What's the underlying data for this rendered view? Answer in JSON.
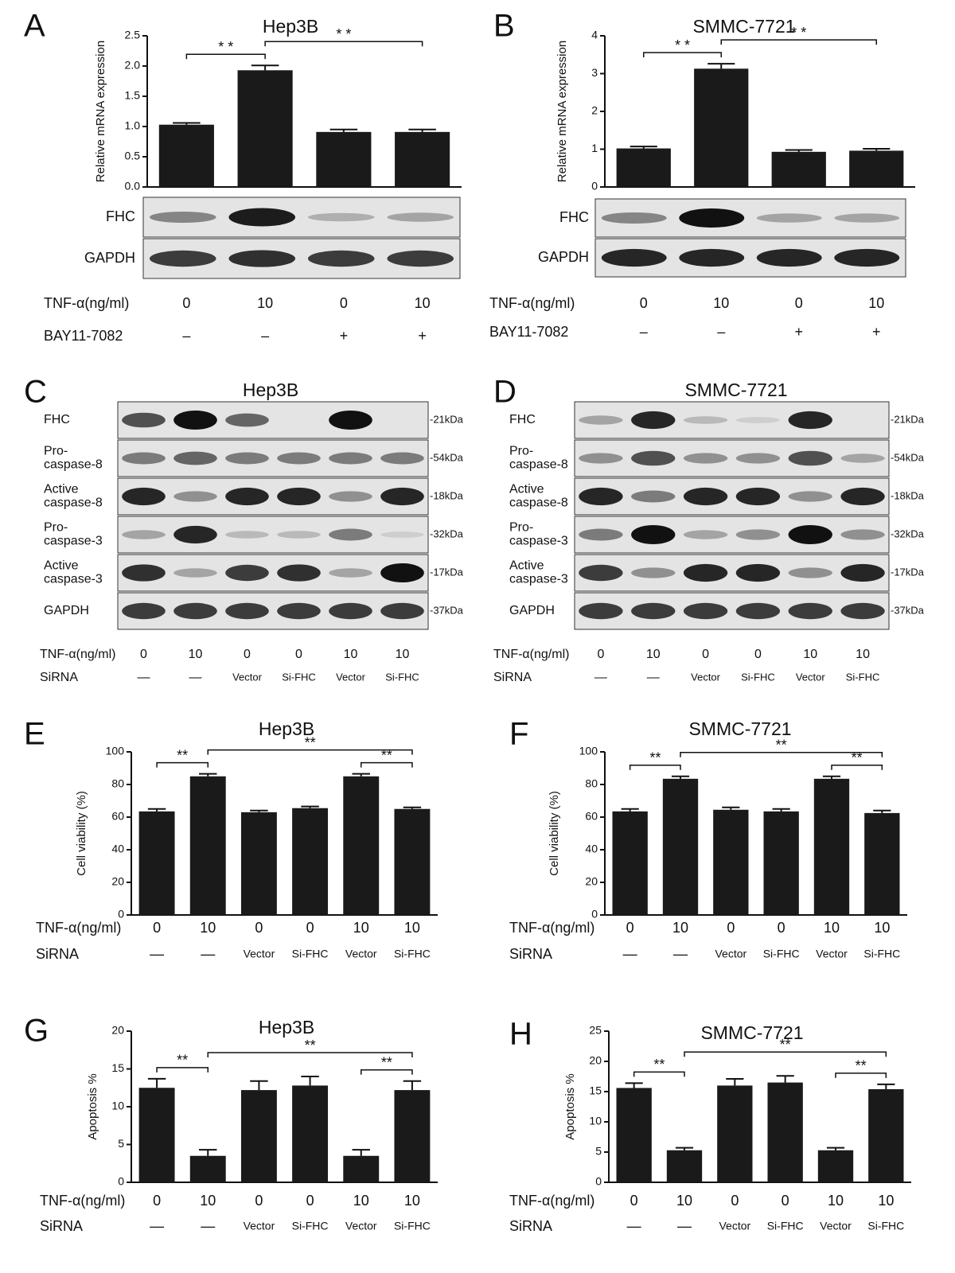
{
  "chart_data": [
    {
      "type": "bar",
      "panel": "A",
      "title": "Hep3B",
      "y_label": "Relative mRNA expression",
      "color": "#1a1a1a",
      "values": [
        1.03,
        1.93,
        0.91,
        0.91
      ],
      "errors": [
        0.03,
        0.08,
        0.04,
        0.04
      ],
      "ylim": [
        0,
        2.5
      ],
      "yticks": [
        {
          "value": 0,
          "label": "0.0"
        },
        0.5,
        {
          "value": 1,
          "label": "1.0"
        },
        1.5,
        {
          "value": 2,
          "label": "2.0"
        },
        2.5
      ],
      "annotations": [
        {
          "text": "* *",
          "from": 0,
          "to": 1
        },
        {
          "text": "* *",
          "from": 1,
          "to": 3
        }
      ],
      "rows": [
        {
          "label": "TNF-α(ng/ml)",
          "cells": [
            "0",
            "10",
            "0",
            "10"
          ]
        },
        {
          "label": "BAY11-7082",
          "cells": [
            "–",
            "–",
            "+",
            "+"
          ]
        }
      ]
    },
    {
      "type": "bar",
      "panel": "B",
      "title": "SMMC-7721",
      "y_label": "Relative mRNA expression",
      "color": "#1a1a1a",
      "values": [
        1.02,
        3.13,
        0.93,
        0.96
      ],
      "errors": [
        0.05,
        0.13,
        0.05,
        0.05
      ],
      "ylim": [
        0,
        4
      ],
      "yticks": [
        0,
        1,
        2,
        3,
        4
      ],
      "annotations": [
        {
          "text": "* *",
          "from": 0,
          "to": 1
        },
        {
          "text": "* *",
          "from": 1,
          "to": 3
        }
      ],
      "rows": [
        {
          "label": "TNF-α(ng/ml)",
          "cells": [
            "0",
            "10",
            "0",
            "10"
          ]
        },
        {
          "label": "BAY11-7082",
          "cells": [
            "–",
            "–",
            "+",
            "+"
          ]
        }
      ]
    },
    {
      "type": "bar",
      "panel": "E",
      "title": "Hep3B",
      "y_label": "Cell viability (%)",
      "color": "#1a1a1a",
      "values": [
        63.5,
        85,
        63,
        65.5,
        85,
        65
      ],
      "errors": [
        1.5,
        1.5,
        1,
        1,
        1.5,
        1
      ],
      "ylim": [
        0,
        100
      ],
      "yticks": [
        0,
        20,
        40,
        60,
        80,
        100
      ],
      "annotations": [
        {
          "text": "**",
          "from": 0,
          "to": 1
        },
        {
          "text": "**",
          "from": 1,
          "to": 5
        },
        {
          "text": "**",
          "from": 4,
          "to": 5
        }
      ],
      "rows": [
        {
          "label": "TNF-α(ng/ml)",
          "cells": [
            "0",
            "10",
            "0",
            "0",
            "10",
            "10"
          ]
        },
        {
          "label": "SiRNA",
          "cells": [
            "—",
            "—",
            "Vector",
            "Si-FHC",
            "Vector",
            "Si-FHC"
          ]
        }
      ]
    },
    {
      "type": "bar",
      "panel": "F",
      "title": "SMMC-7721",
      "y_label": "Cell viability (%)",
      "color": "#1a1a1a",
      "values": [
        63.5,
        83.5,
        64.5,
        63.5,
        83.5,
        62.5
      ],
      "errors": [
        1.5,
        1.5,
        1.5,
        1.5,
        1.5,
        1.5
      ],
      "ylim": [
        0,
        100
      ],
      "yticks": [
        0,
        20,
        40,
        60,
        80,
        100
      ],
      "annotations": [
        {
          "text": "**",
          "from": 0,
          "to": 1
        },
        {
          "text": "**",
          "from": 1,
          "to": 5
        },
        {
          "text": "**",
          "from": 4,
          "to": 5
        }
      ],
      "rows": [
        {
          "label": "TNF-α(ng/ml)",
          "cells": [
            "0",
            "10",
            "0",
            "0",
            "10",
            "10"
          ]
        },
        {
          "label": "SiRNA",
          "cells": [
            "—",
            "—",
            "Vector",
            "Si-FHC",
            "Vector",
            "Si-FHC"
          ]
        }
      ]
    },
    {
      "type": "bar",
      "panel": "G",
      "title": "Hep3B",
      "y_label": "Apoptosis %",
      "color": "#1a1a1a",
      "values": [
        12.5,
        3.5,
        12.2,
        12.8,
        3.5,
        12.2
      ],
      "errors": [
        1.2,
        0.8,
        1.2,
        1.2,
        0.8,
        1.2
      ],
      "ylim": [
        0,
        20
      ],
      "yticks": [
        0,
        5,
        10,
        15,
        20
      ],
      "annotations": [
        {
          "text": "**",
          "from": 0,
          "to": 1
        },
        {
          "text": "**",
          "from": 1,
          "to": 5
        },
        {
          "text": "**",
          "from": 4,
          "to": 5
        }
      ],
      "rows": [
        {
          "label": "TNF-α(ng/ml)",
          "cells": [
            "0",
            "10",
            "0",
            "0",
            "10",
            "10"
          ]
        },
        {
          "label": "SiRNA",
          "cells": [
            "—",
            "—",
            "Vector",
            "Si-FHC",
            "Vector",
            "Si-FHC"
          ]
        }
      ]
    },
    {
      "type": "bar",
      "panel": "H",
      "title": "SMMC-7721",
      "y_label": "Apoptosis %",
      "color": "#1a1a1a",
      "values": [
        15.6,
        5.3,
        16,
        16.5,
        5.3,
        15.4
      ],
      "errors": [
        0.8,
        0.4,
        1.1,
        1.1,
        0.4,
        0.8
      ],
      "ylim": [
        0,
        25
      ],
      "yticks": [
        0,
        5,
        10,
        15,
        20,
        25
      ],
      "annotations": [
        {
          "text": "**",
          "from": 0,
          "to": 1
        },
        {
          "text": "**",
          "from": 1,
          "to": 5
        },
        {
          "text": "**",
          "from": 4,
          "to": 5
        }
      ],
      "rows": [
        {
          "label": "TNF-α(ng/ml)",
          "cells": [
            "0",
            "10",
            "0",
            "0",
            "10",
            "10"
          ]
        },
        {
          "label": "SiRNA",
          "cells": [
            "—",
            "—",
            "Vector",
            "Si-FHC",
            "Vector",
            "Si-FHC"
          ]
        }
      ]
    }
  ],
  "blot_panels": [
    {
      "rows": [
        {
          "label": [
            "FHC"
          ]
        },
        {
          "label": [
            "GAPDH"
          ]
        }
      ]
    },
    {
      "rows": [
        {
          "label": [
            "FHC"
          ]
        },
        {
          "label": [
            "GAPDH"
          ]
        }
      ]
    },
    {
      "panel": "C",
      "title": "Hep3B",
      "rows": [
        {
          "label": [
            "FHC"
          ],
          "size": "-21kDa"
        },
        {
          "label": [
            "Pro-",
            "caspase-8"
          ],
          "size": "-54kDa"
        },
        {
          "label": [
            "Active",
            "caspase-8"
          ],
          "size": "-18kDa"
        },
        {
          "label": [
            "Pro-",
            "caspase-3"
          ],
          "size": "-32kDa"
        },
        {
          "label": [
            "Active",
            "caspase-3"
          ],
          "size": "-17kDa"
        },
        {
          "label": [
            "GAPDH"
          ],
          "size": "-37kDa"
        }
      ],
      "lanes": [
        {
          "label": "TNF-α(ng/ml)",
          "cells": [
            "0",
            "10",
            "0",
            "0",
            "10",
            "10"
          ]
        },
        {
          "label": "SiRNA",
          "cells": [
            "—",
            "—",
            "Vector",
            "Si-FHC",
            "Vector",
            "Si-FHC"
          ]
        }
      ]
    },
    {
      "panel": "D",
      "title": "SMMC-7721",
      "rows": [
        {
          "label": [
            "FHC"
          ],
          "size": "-21kDa"
        },
        {
          "label": [
            "Pro-",
            "caspase-8"
          ],
          "size": "-54kDa"
        },
        {
          "label": [
            "Active",
            "caspase-8"
          ],
          "size": "-18kDa"
        },
        {
          "label": [
            "Pro-",
            "caspase-3"
          ],
          "size": "-32kDa"
        },
        {
          "label": [
            "Active",
            "caspase-3"
          ],
          "size": "-17kDa"
        },
        {
          "label": [
            "GAPDH"
          ],
          "size": "-37kDa"
        }
      ],
      "lanes": [
        {
          "label": "TNF-α(ng/ml)",
          "cells": [
            "0",
            "10",
            "0",
            "0",
            "10",
            "10"
          ]
        },
        {
          "label": "SiRNA",
          "cells": [
            "—",
            "—",
            "Vector",
            "Si-FHC",
            "Vector",
            "Si-FHC"
          ]
        }
      ]
    }
  ]
}
